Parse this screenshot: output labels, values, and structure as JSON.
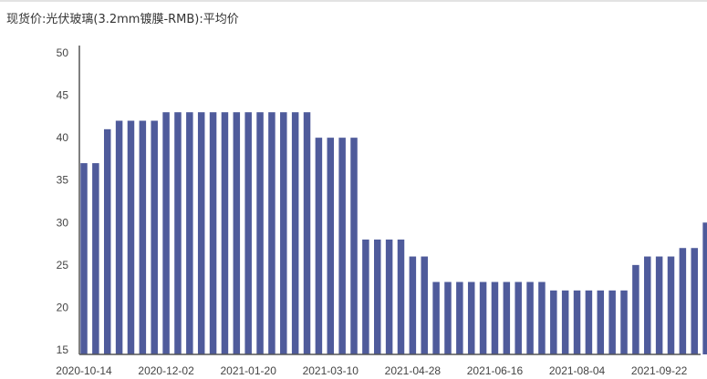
{
  "chart_data": {
    "type": "bar",
    "title": "现货价:光伏玻璃(3.2mm镀膜-RMB):平均价",
    "xlabel": "",
    "ylabel": "",
    "ylim": [
      15,
      50
    ],
    "yticks": [
      15,
      20,
      25,
      30,
      35,
      40,
      45,
      50
    ],
    "xtick_labels": [
      "2020-10-14",
      "2020-12-02",
      "2021-01-20",
      "2021-03-10",
      "2021-04-28",
      "2021-06-16",
      "2021-08-04",
      "2021-09-22"
    ],
    "xtick_label_indices": [
      0,
      7,
      14,
      21,
      28,
      35,
      42,
      49
    ],
    "grid": false,
    "colors": {
      "bar": "#4f5b9b",
      "axis": "#555555"
    },
    "values": [
      37,
      37,
      41,
      42,
      42,
      42,
      42,
      43,
      43,
      43,
      43,
      43,
      43,
      43,
      43,
      43,
      43,
      43,
      43,
      43,
      40,
      40,
      40,
      40,
      28,
      28,
      28,
      28,
      26,
      26,
      23,
      23,
      23,
      23,
      23,
      23,
      23,
      23,
      23,
      23,
      22,
      22,
      22,
      22,
      22,
      22,
      22,
      25,
      26,
      26,
      26,
      27,
      27,
      30
    ]
  }
}
